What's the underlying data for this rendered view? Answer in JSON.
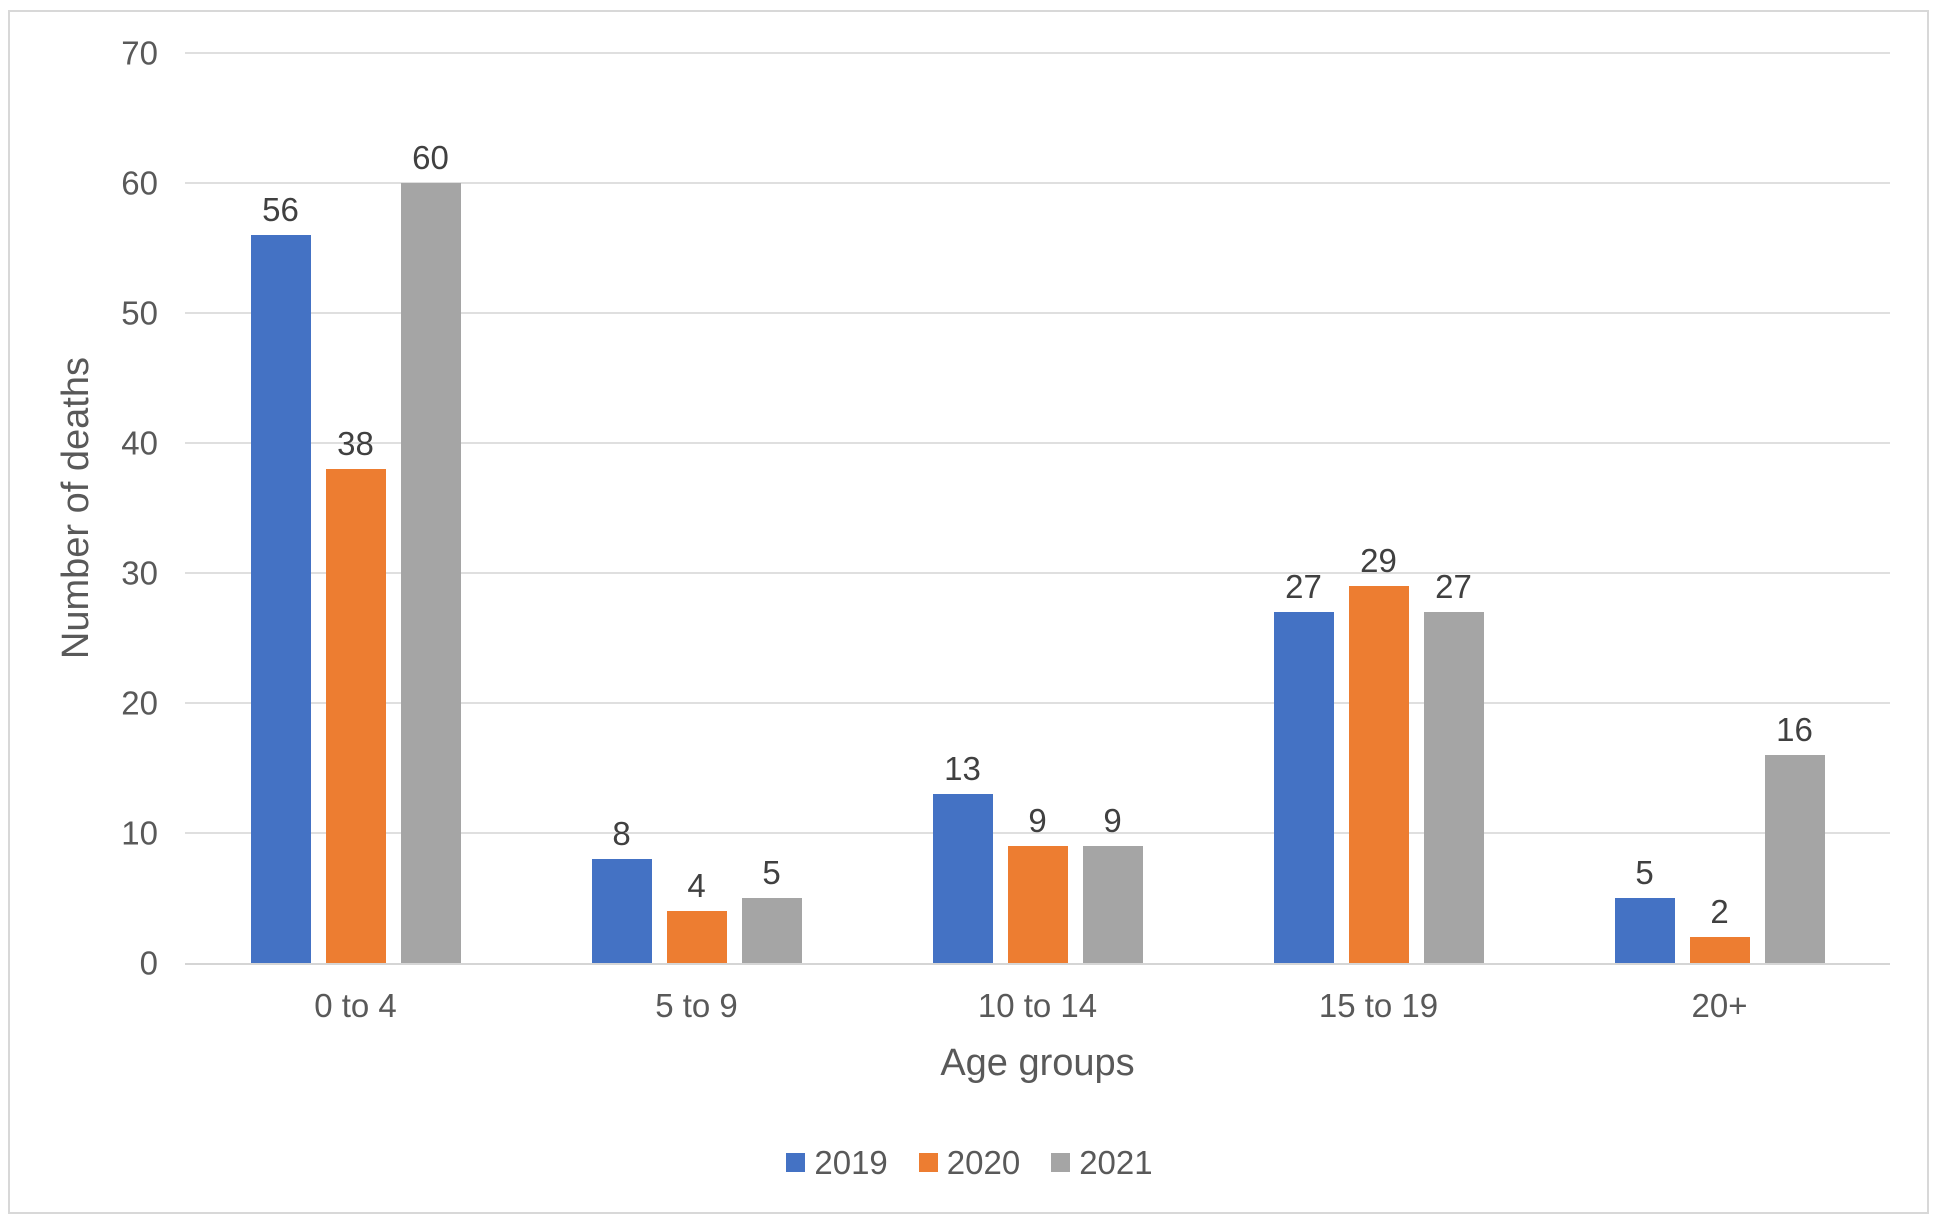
{
  "chart_data": {
    "type": "bar",
    "categories": [
      "0 to 4",
      "5 to 9",
      "10 to 14",
      "15 to 19",
      "20+"
    ],
    "series": [
      {
        "name": "2019",
        "color": "#4472C4",
        "values": [
          56,
          8,
          13,
          27,
          5
        ]
      },
      {
        "name": "2020",
        "color": "#ED7D31",
        "values": [
          38,
          4,
          9,
          29,
          2
        ]
      },
      {
        "name": "2021",
        "color": "#A5A5A5",
        "values": [
          60,
          5,
          9,
          27,
          16
        ]
      }
    ],
    "title": "",
    "xlabel": "Age groups",
    "ylabel": "Number of deaths",
    "ylim": [
      0,
      70
    ],
    "ytick_step": 10,
    "y_ticks": [
      0,
      10,
      20,
      30,
      40,
      50,
      60,
      70
    ],
    "grid": true,
    "legend_position": "bottom",
    "data_labels": true
  },
  "colors": {
    "gridline": "#dfdfdf",
    "axis_line": "#d5d5d5",
    "axis_text": "#595959",
    "data_label_text": "#404040",
    "frame_border": "#d8d8d8",
    "background": "#ffffff"
  }
}
